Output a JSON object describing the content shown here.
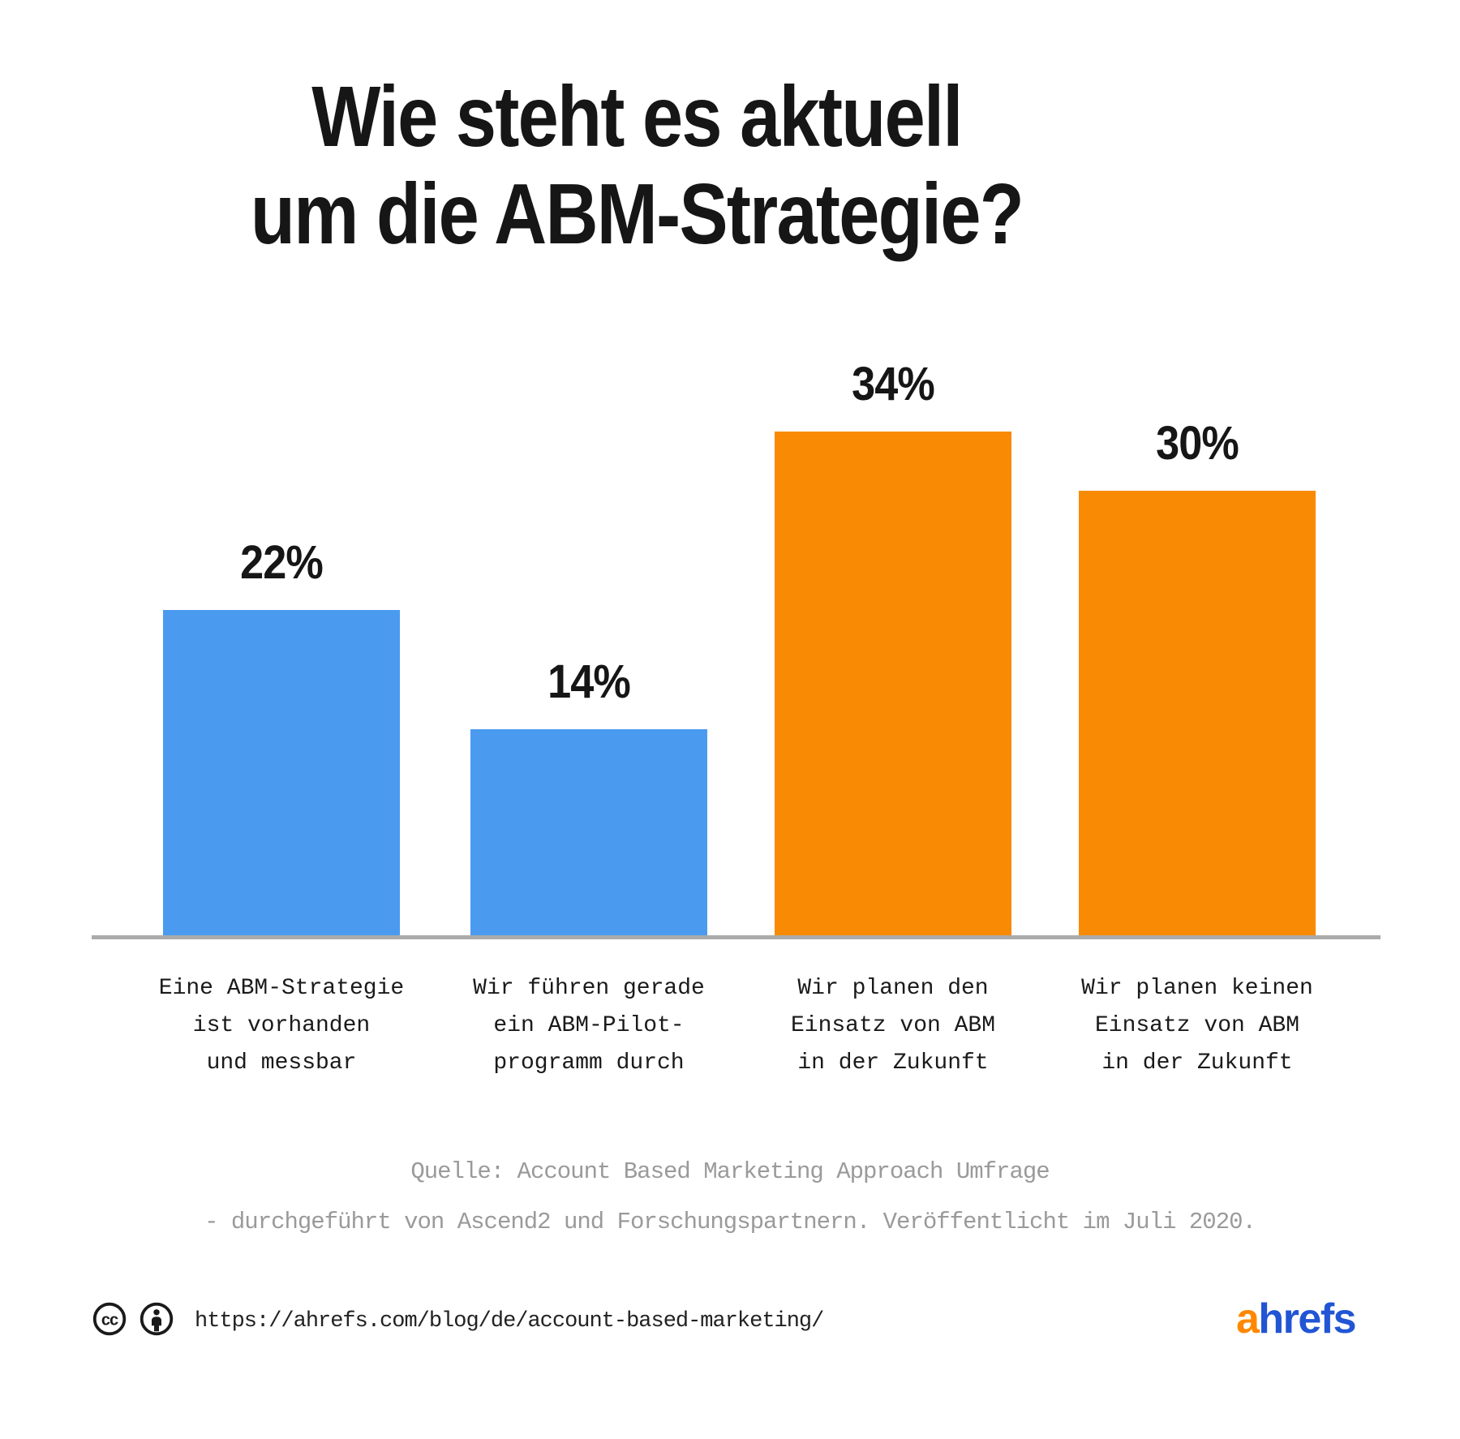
{
  "title": {
    "line1": "Wie steht es aktuell",
    "line2": "um die ABM-Strategie?"
  },
  "chart_data": {
    "type": "bar",
    "title": "Wie steht es aktuell um die ABM-Strategie?",
    "categories": [
      "Eine ABM-Strategie\nist vorhanden\nund messbar",
      "Wir führen gerade\nein ABM-Pilot-\nprogramm durch",
      "Wir planen den\nEinsatz von ABM\nin der Zukunft",
      "Wir planen keinen\nEinsatz von ABM\nin der Zukunft"
    ],
    "values": [
      22,
      14,
      34,
      30
    ],
    "value_labels": [
      "22%",
      "14%",
      "34%",
      "30%"
    ],
    "bar_colors": [
      "#4A9BF0",
      "#4A9BF0",
      "#F88A04",
      "#F88A04"
    ],
    "ylim": [
      0,
      34
    ],
    "grid": false,
    "legend": "none",
    "baseline_color": "#ABABAB"
  },
  "source": {
    "line1": "Quelle: Account Based Marketing Approach Umfrage",
    "line2": "- durchgeführt von Ascend2 und Forschungspartnern. Veröffentlicht im Juli 2020."
  },
  "footer": {
    "url": "https://ahrefs.com/blog/de/account-based-marketing/",
    "license_icons": [
      "cc-icon",
      "attribution-icon"
    ],
    "logo": {
      "part1": "a",
      "part2": "hrefs",
      "part1_color": "#FF8800",
      "part2_color": "#2155D4"
    }
  },
  "colors": {
    "text": "#161616",
    "muted": "#9A9A9A",
    "blue": "#4A9BF0",
    "orange": "#F88A04",
    "axis": "#ABABAB",
    "icon": "#1A1A1A"
  }
}
